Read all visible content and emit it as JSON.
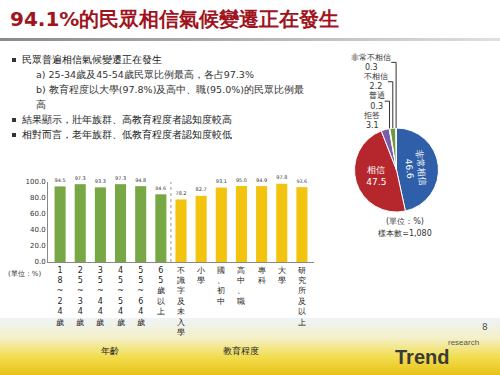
{
  "slide": {
    "title": "94.1%的民眾相信氣候變遷正在發生",
    "bullets": [
      {
        "text": "民眾普遍相信氣候變遷正在發生",
        "sub": [
          "a) 25-34歲及45-54歲民眾比例最高，各占97.3%",
          "b) 教育程度以大學(97.8%)及高中、職(95.0%)的民眾比例最高"
        ]
      },
      {
        "text": "結果顯示，壯年族群、高教育程度者認知度較高",
        "sub": []
      },
      {
        "text": "相對而言，老年族群、低教育程度者認知度較低",
        "sub": []
      }
    ],
    "page": "8",
    "logo": "Trend",
    "logo_sub": "research"
  },
  "chart_data": [
    {
      "type": "pie",
      "categories": [
        "非常相信",
        "相信",
        "拒答",
        "普通",
        "不相信",
        "非常不相信"
      ],
      "values": [
        46.6,
        47.5,
        3.1,
        0.3,
        2.2,
        0.3
      ],
      "colors": [
        "#2e5fa8",
        "#b5272d",
        "#7b5ea7",
        "#9a9a9a",
        "#6f9a3a",
        "#3f8fb0"
      ],
      "data_labels": true,
      "annotations": [
        "(單位：%)",
        "樣本數=1,080"
      ]
    },
    {
      "type": "bar",
      "categories": [
        "18~24歲",
        "25~34歲",
        "35~44歲",
        "45~54歲",
        "55~64歲",
        "65歲以上",
        "不識字及未入學",
        "小學",
        "國、初中",
        "高中、職",
        "專科",
        "大學",
        "研究所及以上"
      ],
      "values": [
        94.5,
        97.3,
        93.3,
        97.3,
        94.8,
        84.6,
        78.2,
        82.7,
        93.1,
        95.0,
        94.9,
        97.8,
        93.6
      ],
      "value_labels": [
        "94.5",
        "97.3",
        "93.3",
        "97.3",
        "94.8",
        "84.6",
        "78.2",
        "82.7",
        "93.1",
        "95.0",
        "94.9",
        "97.8",
        "93.6"
      ],
      "colors": [
        "#77a845",
        "#77a845",
        "#77a845",
        "#77a845",
        "#77a845",
        "#77a845",
        "#f2c40f",
        "#f2c40f",
        "#f2c40f",
        "#f2c40f",
        "#f2c40f",
        "#f2c40f",
        "#f2c40f"
      ],
      "ylim": [
        0,
        100
      ],
      "yticks": [
        {
          "value": 0,
          "label": "0.0"
        },
        {
          "value": 20,
          "label": "20.0"
        },
        {
          "value": 40,
          "label": "40.0"
        },
        {
          "value": 60,
          "label": "60.0"
        },
        {
          "value": 80,
          "label": "80.0"
        },
        {
          "value": 100,
          "label": "100.0"
        }
      ],
      "y_label": "(單位：%)",
      "grid": false,
      "data_labels": true,
      "groups": [
        {
          "label": "年齡",
          "categories": [
            "18~24歲",
            "25~34歲",
            "35~44歲",
            "45~54歲",
            "55~64歲",
            "65歲以上"
          ]
        },
        {
          "label": "教育程度",
          "categories": [
            "不識字及未入學",
            "小學",
            "國、初中",
            "高中、職",
            "專科",
            "大學",
            "研究所及以上"
          ]
        }
      ]
    }
  ]
}
